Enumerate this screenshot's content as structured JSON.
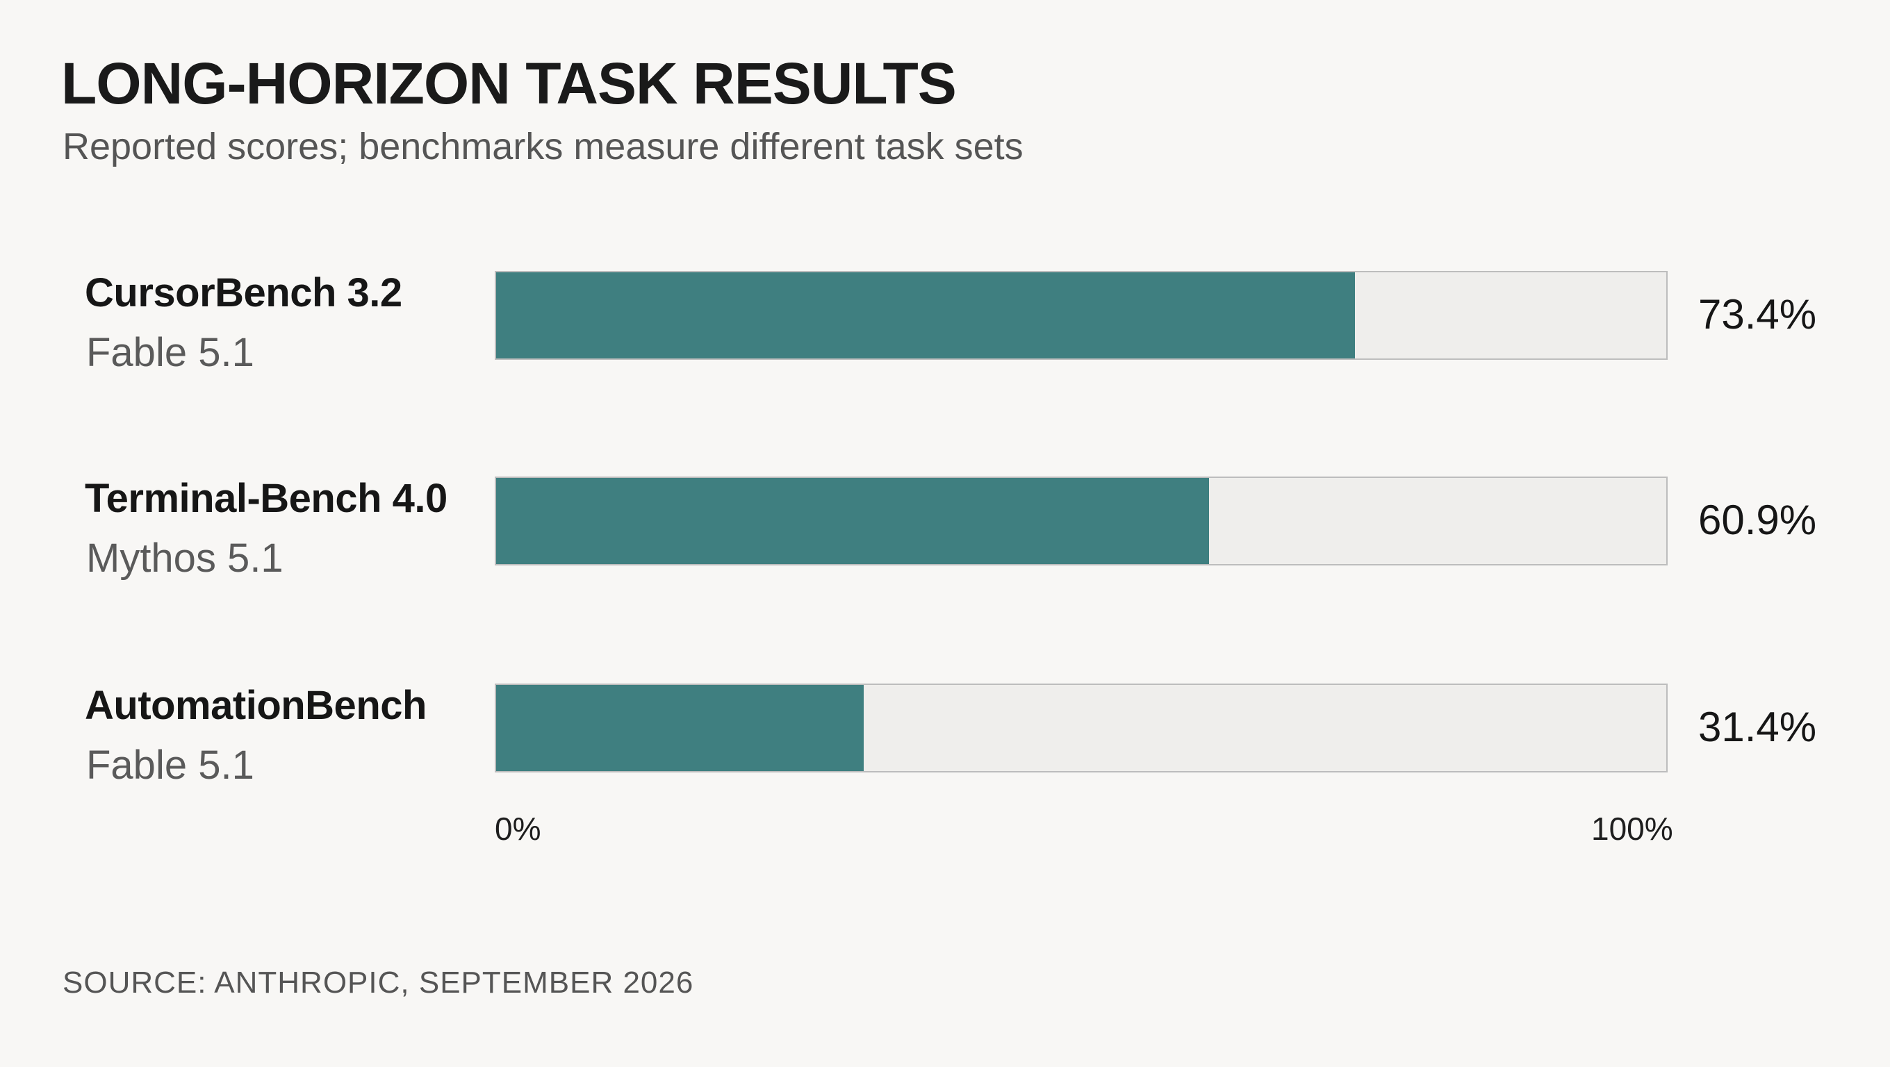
{
  "chart_data": {
    "type": "bar",
    "orientation": "horizontal",
    "title": "LONG-HORIZON TASK RESULTS",
    "subtitle": "Reported scores; benchmarks measure different task sets",
    "categories": [
      "CursorBench 3.2",
      "Terminal-Bench 4.0",
      "AutomationBench"
    ],
    "models": [
      "Fable 5.1",
      "Mythos 5.1",
      "Fable 5.1"
    ],
    "values": [
      73.4,
      60.9,
      31.4
    ],
    "value_labels": [
      "73.4%",
      "60.9%",
      "31.4%"
    ],
    "xlim": [
      0,
      100
    ],
    "axis_labels": {
      "min": "0%",
      "max": "100%"
    },
    "grid": false,
    "legend": "none",
    "source": "SOURCE: ANTHROPIC, SEPTEMBER 2026",
    "colors": {
      "bar": "#3f7f80",
      "track": "#efeeec",
      "track_border": "#bdbdbd",
      "background": "#f8f7f5"
    }
  }
}
